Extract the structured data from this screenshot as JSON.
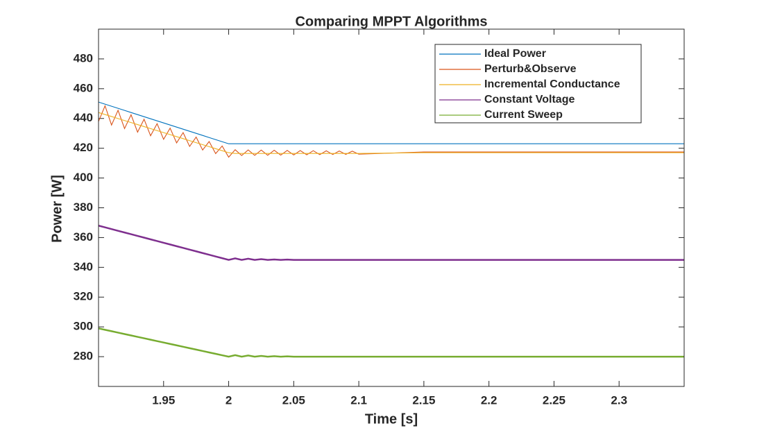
{
  "chart_data": {
    "type": "line",
    "title": "Comparing MPPT Algorithms",
    "x_label": "Time [s]",
    "y_label": "Power [W]",
    "x": [
      1.9,
      1.905,
      1.91,
      1.915,
      1.92,
      1.925,
      1.93,
      1.935,
      1.94,
      1.945,
      1.95,
      1.955,
      1.96,
      1.965,
      1.97,
      1.975,
      1.98,
      1.985,
      1.99,
      1.995,
      2.0,
      2.005,
      2.01,
      2.015,
      2.02,
      2.025,
      2.03,
      2.035,
      2.04,
      2.045,
      2.05,
      2.055,
      2.06,
      2.065,
      2.07,
      2.075,
      2.08,
      2.085,
      2.09,
      2.095,
      2.1,
      2.15,
      2.2,
      2.25,
      2.3,
      2.35
    ],
    "series": [
      {
        "name": "Ideal Power",
        "color": "#0072BD",
        "values": [
          451,
          449.6,
          448.2,
          446.8,
          445.4,
          444,
          442.6,
          441.2,
          439.8,
          438.4,
          437,
          435.6,
          434.2,
          432.8,
          431.4,
          430,
          428.6,
          427.2,
          425.8,
          424.4,
          423,
          423,
          423,
          423,
          423,
          423,
          423,
          423,
          423,
          423,
          423,
          423,
          423,
          423,
          423,
          423,
          423,
          423,
          423,
          423,
          423,
          423,
          423,
          423,
          423,
          423
        ]
      },
      {
        "name": "Perturb&Observe",
        "color": "#D95319",
        "values": [
          438,
          448.5,
          435.6,
          445.5,
          433.2,
          442.5,
          430.8,
          439.5,
          428.4,
          436.5,
          426,
          433.5,
          423.6,
          430.5,
          421.2,
          427.5,
          418.8,
          424.5,
          416.4,
          421.5,
          414,
          419,
          415.1,
          418.85,
          415.2,
          418.75,
          415.3,
          418.65,
          415.4,
          418.55,
          415.5,
          418.45,
          415.6,
          418.35,
          415.7,
          418.25,
          415.8,
          418.15,
          415.9,
          418.05,
          416,
          417.5,
          417.5,
          417.5,
          417.5,
          417.5
        ]
      },
      {
        "name": "Incremental Conductance",
        "color": "#EDB120",
        "values": [
          444,
          442.65,
          441.3,
          439.95,
          438.6,
          437.25,
          435.9,
          434.55,
          433.2,
          431.85,
          430.5,
          429.15,
          427.8,
          426.45,
          425.1,
          423.75,
          422.4,
          421.05,
          419.7,
          418.35,
          417,
          416.5,
          416.5,
          416.5,
          416.5,
          416.5,
          416.5,
          416.5,
          416.5,
          416.5,
          416.5,
          416.5,
          416.5,
          416.5,
          416.5,
          416.5,
          416.5,
          416.5,
          416.5,
          416.5,
          416.5,
          417,
          417,
          417,
          417,
          417
        ]
      },
      {
        "name": "Constant Voltage",
        "color": "#7E2F8E",
        "values": [
          368,
          366.85,
          365.7,
          364.55,
          363.4,
          362.25,
          361.1,
          359.95,
          358.8,
          357.65,
          356.5,
          355.35,
          354.2,
          353.05,
          351.9,
          350.75,
          349.6,
          348.45,
          347.3,
          346.15,
          345,
          346,
          345,
          345.8,
          345,
          345.5,
          345,
          345.3,
          345,
          345.2,
          345,
          345,
          345,
          345,
          345,
          345,
          345,
          345,
          345,
          345,
          345,
          345,
          345,
          345,
          345,
          345
        ]
      },
      {
        "name": "Current Sweep",
        "color": "#77AC30",
        "values": [
          299,
          298.05,
          297.1,
          296.15,
          295.2,
          294.25,
          293.3,
          292.35,
          291.4,
          290.45,
          289.5,
          288.55,
          287.6,
          286.65,
          285.7,
          284.75,
          283.8,
          282.85,
          281.9,
          280.95,
          280,
          281,
          280,
          280.8,
          280,
          280.5,
          280,
          280.3,
          280,
          280.2,
          280,
          280,
          280,
          280,
          280,
          280,
          280,
          280,
          280,
          280,
          280,
          280,
          280,
          280,
          280,
          280
        ]
      }
    ],
    "xlim": [
      1.9,
      2.35
    ],
    "ylim": [
      260,
      500
    ],
    "xticks": [
      1.95,
      2,
      2.05,
      2.1,
      2.15,
      2.2,
      2.25,
      2.3
    ],
    "yticks": [
      280,
      300,
      320,
      340,
      360,
      380,
      400,
      420,
      440,
      460,
      480
    ],
    "legend": "upper right",
    "box": true
  }
}
